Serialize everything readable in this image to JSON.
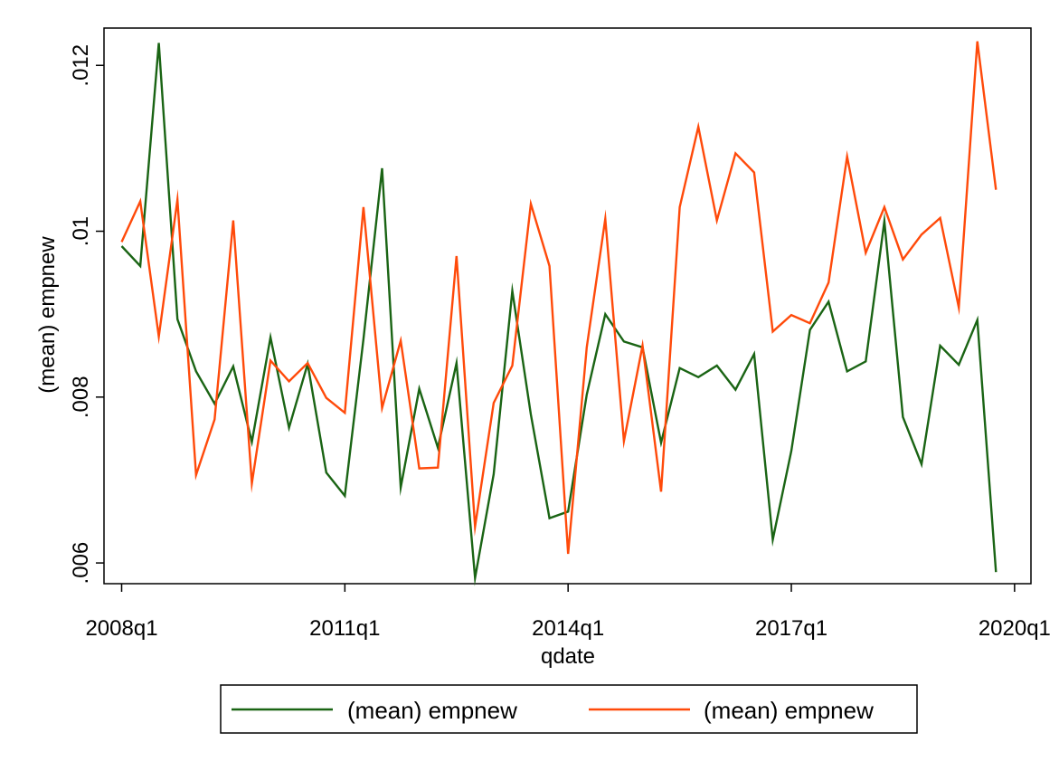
{
  "chart_data": {
    "type": "line",
    "xlabel": "qdate",
    "ylabel": "(mean) empnew",
    "x_tick_labels": [
      "2008q1",
      "2011q1",
      "2014q1",
      "2017q1",
      "2020q1"
    ],
    "y_tick_labels": [
      ".006",
      ".008",
      ".01",
      ".012"
    ],
    "y_ticks": [
      0.006,
      0.008,
      0.01,
      0.012
    ],
    "ylim": [
      0.00575,
      0.01245
    ],
    "x": [
      "2008q1",
      "2008q2",
      "2008q3",
      "2008q4",
      "2009q1",
      "2009q2",
      "2009q3",
      "2009q4",
      "2010q1",
      "2010q2",
      "2010q3",
      "2010q4",
      "2011q1",
      "2011q2",
      "2011q3",
      "2011q4",
      "2012q1",
      "2012q2",
      "2012q3",
      "2012q4",
      "2013q1",
      "2013q2",
      "2013q3",
      "2013q4",
      "2014q1",
      "2014q2",
      "2014q3",
      "2014q4",
      "2015q1",
      "2015q2",
      "2015q3",
      "2015q4",
      "2016q1",
      "2016q2",
      "2016q3",
      "2016q4",
      "2017q1",
      "2017q2",
      "2017q3",
      "2017q4",
      "2018q1",
      "2018q2",
      "2018q3",
      "2018q4",
      "2019q1",
      "2019q2",
      "2019q3",
      "2019q4"
    ],
    "grid": false,
    "legend_position": "bottom",
    "series": [
      {
        "name": "(mean) empnew",
        "color": "#1a6414",
        "values": [
          0.00982,
          0.00958,
          0.01227,
          0.00894,
          0.00831,
          0.00792,
          0.00837,
          0.00746,
          0.00872,
          0.00763,
          0.0084,
          0.00709,
          0.00681,
          0.0087,
          0.01076,
          0.00691,
          0.0081,
          0.00739,
          0.00841,
          0.00582,
          0.00707,
          0.00928,
          0.00779,
          0.00654,
          0.00662,
          0.00803,
          0.009,
          0.00867,
          0.0086,
          0.00745,
          0.00835,
          0.00824,
          0.00838,
          0.00809,
          0.00852,
          0.00628,
          0.00735,
          0.00881,
          0.00915,
          0.00831,
          0.00843,
          0.01012,
          0.00776,
          0.00719,
          0.00862,
          0.00839,
          0.00893,
          0.00589
        ]
      },
      {
        "name": "(mean) empnew",
        "color": "#ff4a0a",
        "values": [
          0.00987,
          0.01036,
          0.00873,
          0.01038,
          0.00706,
          0.00773,
          0.01013,
          0.00696,
          0.00844,
          0.00819,
          0.00841,
          0.00799,
          0.00781,
          0.01029,
          0.00787,
          0.00868,
          0.00714,
          0.00715,
          0.0097,
          0.00644,
          0.00793,
          0.00838,
          0.01033,
          0.00958,
          0.00611,
          0.0086,
          0.01015,
          0.00747,
          0.00862,
          0.00686,
          0.01029,
          0.01126,
          0.01013,
          0.01094,
          0.01071,
          0.00879,
          0.00899,
          0.00889,
          0.00938,
          0.0109,
          0.00974,
          0.01029,
          0.00966,
          0.00996,
          0.01016,
          0.00908,
          0.01229,
          0.0105
        ]
      }
    ]
  }
}
